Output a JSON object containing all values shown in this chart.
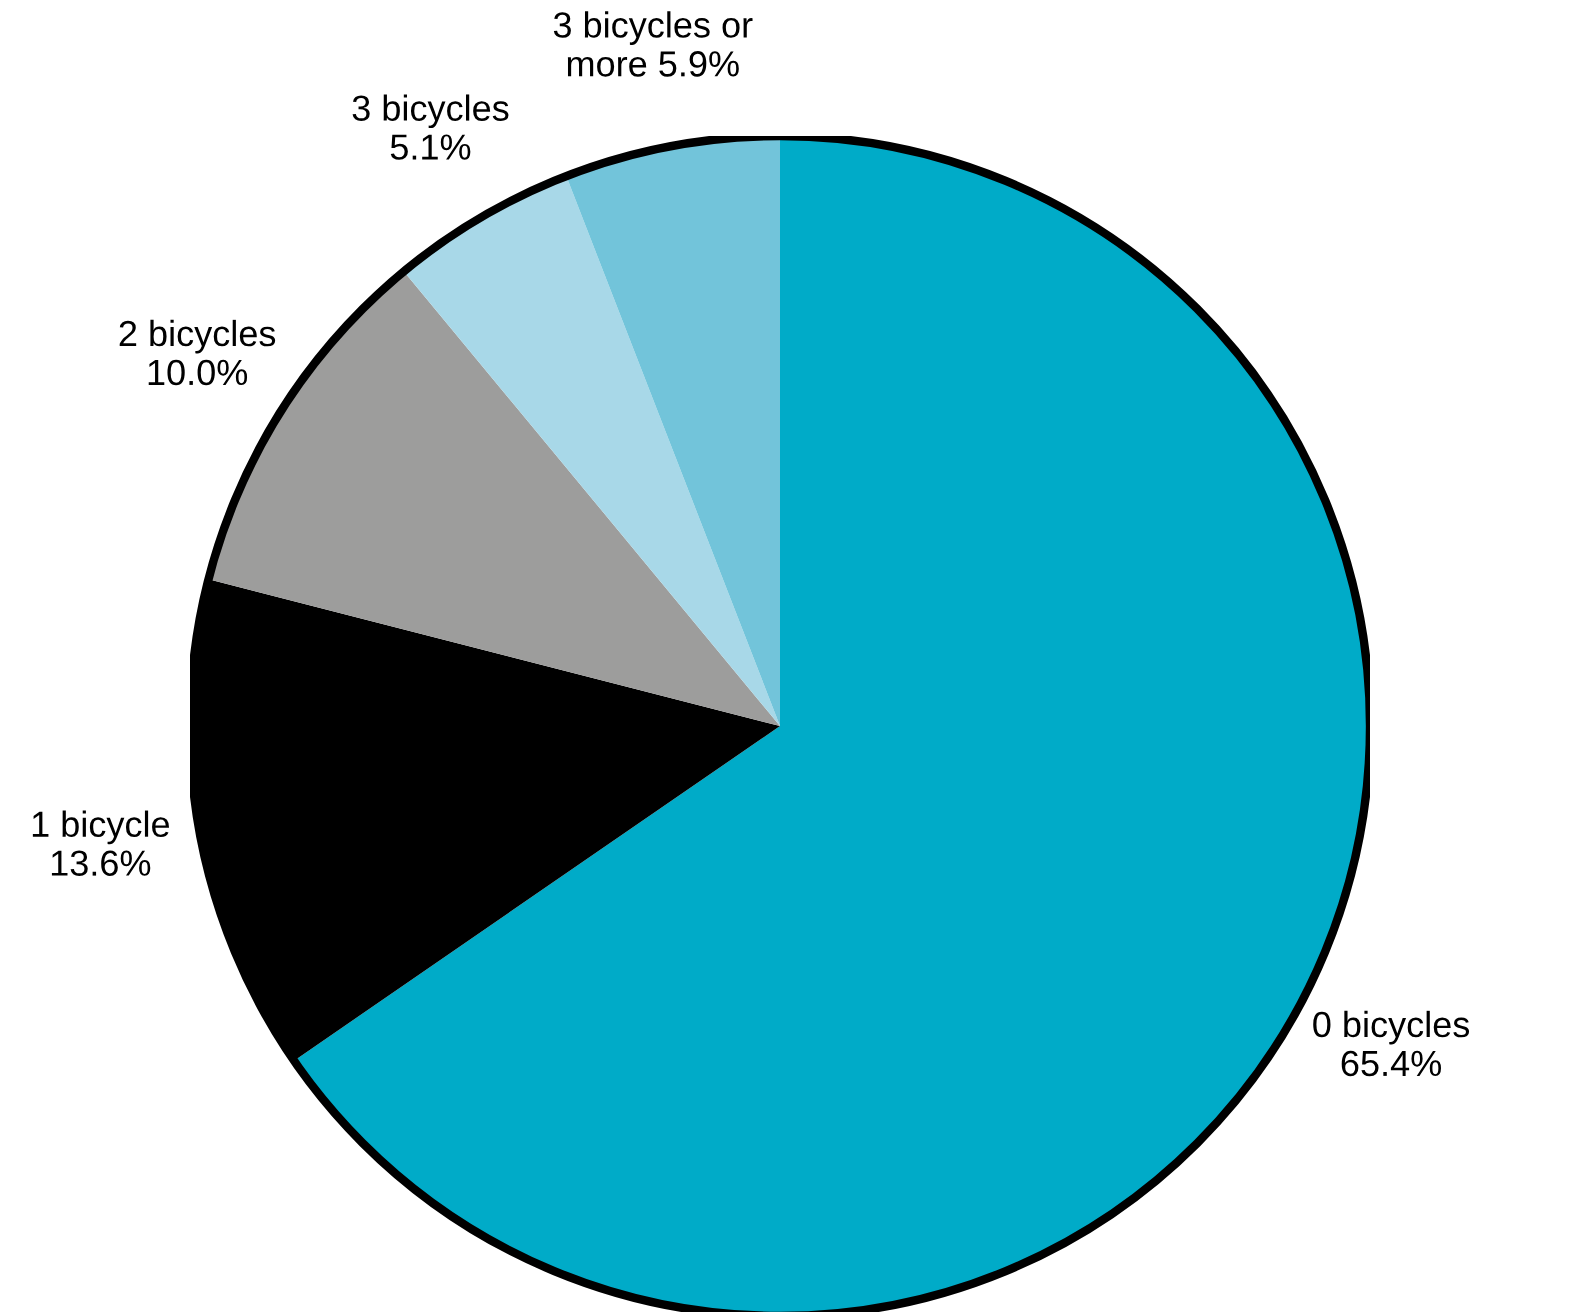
{
  "chart_data": {
    "type": "pie",
    "categories": [
      "0 bicycles",
      "1 bicycle",
      "2 bicycles",
      "3 bicycles",
      "3 bicycles or more"
    ],
    "values": [
      65.4,
      13.6,
      10.0,
      5.1,
      5.9
    ],
    "value_labels": [
      "65.4%",
      "13.6%",
      "10.0%",
      "5.1%",
      "5.9%"
    ],
    "colors": [
      "#00abc8",
      "#000000",
      "#9d9d9c",
      "#a8d8e8",
      "#72c4da"
    ]
  }
}
